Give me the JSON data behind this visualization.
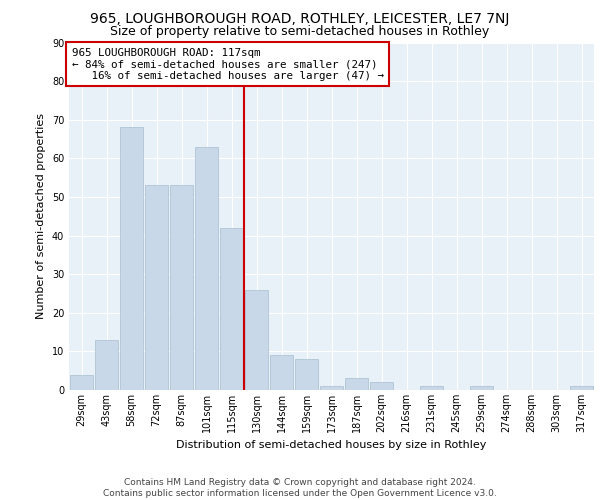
{
  "title1": "965, LOUGHBOROUGH ROAD, ROTHLEY, LEICESTER, LE7 7NJ",
  "title2": "Size of property relative to semi-detached houses in Rothley",
  "xlabel": "Distribution of semi-detached houses by size in Rothley",
  "ylabel": "Number of semi-detached properties",
  "categories": [
    "29sqm",
    "43sqm",
    "58sqm",
    "72sqm",
    "87sqm",
    "101sqm",
    "115sqm",
    "130sqm",
    "144sqm",
    "159sqm",
    "173sqm",
    "187sqm",
    "202sqm",
    "216sqm",
    "231sqm",
    "245sqm",
    "259sqm",
    "274sqm",
    "288sqm",
    "303sqm",
    "317sqm"
  ],
  "values": [
    4,
    13,
    68,
    53,
    53,
    63,
    42,
    26,
    9,
    8,
    1,
    3,
    2,
    0,
    1,
    0,
    1,
    0,
    0,
    0,
    1
  ],
  "bar_color": "#c8d8e8",
  "bar_edge_color": "#a8bfcf",
  "vline_x_index": 6,
  "vline_color": "#cc0000",
  "annotation_line1": "965 LOUGHBOROUGH ROAD: 117sqm",
  "annotation_line2": "← 84% of semi-detached houses are smaller (247)",
  "annotation_line3": "   16% of semi-detached houses are larger (47) →",
  "annotation_box_color": "#cc0000",
  "ylim": [
    0,
    90
  ],
  "yticks": [
    0,
    10,
    20,
    30,
    40,
    50,
    60,
    70,
    80,
    90
  ],
  "footer": "Contains HM Land Registry data © Crown copyright and database right 2024.\nContains public sector information licensed under the Open Government Licence v3.0.",
  "bg_color": "#e8f0f8",
  "grid_color": "#ffffff",
  "title1_fontsize": 10,
  "title2_fontsize": 9,
  "axis_label_fontsize": 8,
  "tick_fontsize": 7,
  "footer_fontsize": 6.5
}
